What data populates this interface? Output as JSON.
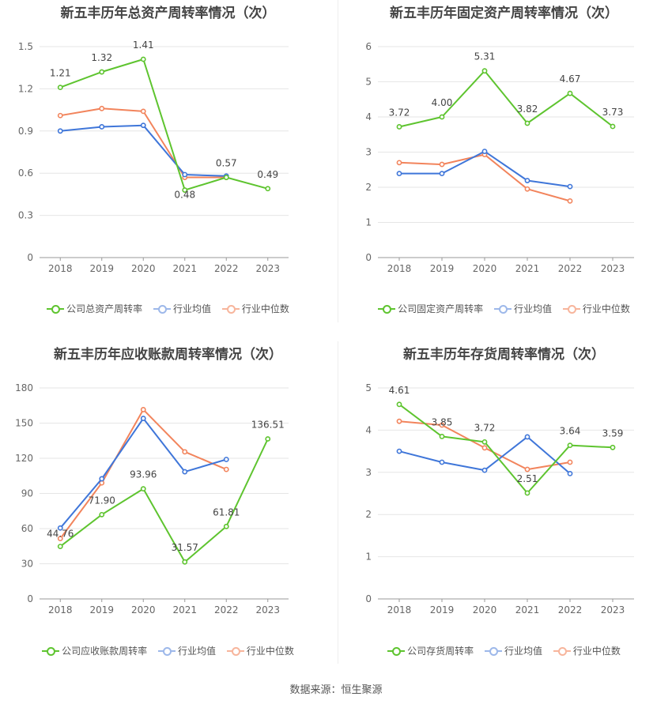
{
  "source": "数据来源：恒生聚源",
  "colors": {
    "company": "#5ec42f",
    "avg": "#3f76d9",
    "median": "#f2845c",
    "grid": "#e6e6e6",
    "axis": "#999999"
  },
  "chart_data": [
    {
      "type": "line",
      "title": "新五丰历年总资产周转率情况（次）",
      "categories": [
        "2018",
        "2019",
        "2020",
        "2021",
        "2022",
        "2023"
      ],
      "yticks": [
        "0",
        "0.3",
        "0.6",
        "0.9",
        "1.2",
        "1.5"
      ],
      "ylim": [
        0,
        1.5
      ],
      "series": [
        {
          "name": "公司总资产周转率",
          "role": "company",
          "values": [
            1.21,
            1.32,
            1.41,
            0.48,
            0.57,
            0.49
          ],
          "labels": [
            "1.21",
            "1.32",
            "1.41",
            "0.48",
            "0.57",
            "0.49"
          ]
        },
        {
          "name": "行业均值",
          "role": "avg",
          "values": [
            0.9,
            0.93,
            0.94,
            0.59,
            0.58,
            null
          ]
        },
        {
          "name": "行业中位数",
          "role": "median",
          "values": [
            1.01,
            1.06,
            1.04,
            0.57,
            0.57,
            null
          ]
        }
      ]
    },
    {
      "type": "line",
      "title": "新五丰历年固定资产周转率情况（次）",
      "categories": [
        "2018",
        "2019",
        "2020",
        "2021",
        "2022",
        "2023"
      ],
      "yticks": [
        "0",
        "1",
        "2",
        "3",
        "4",
        "5",
        "6"
      ],
      "ylim": [
        0,
        6
      ],
      "series": [
        {
          "name": "公司固定资产周转率",
          "role": "company",
          "values": [
            3.72,
            4.0,
            5.31,
            3.82,
            4.67,
            3.73
          ],
          "labels": [
            "3.72",
            "4.00",
            "5.31",
            "3.82",
            "4.67",
            "3.73"
          ]
        },
        {
          "name": "行业均值",
          "role": "avg",
          "values": [
            2.39,
            2.39,
            3.02,
            2.19,
            2.02,
            null
          ]
        },
        {
          "name": "行业中位数",
          "role": "median",
          "values": [
            2.7,
            2.65,
            2.93,
            1.95,
            1.61,
            null
          ]
        }
      ]
    },
    {
      "type": "line",
      "title": "新五丰历年应收账款周转率情况（次）",
      "categories": [
        "2018",
        "2019",
        "2020",
        "2021",
        "2022",
        "2023"
      ],
      "yticks": [
        "0",
        "30",
        "60",
        "90",
        "120",
        "150",
        "180"
      ],
      "ylim": [
        0,
        180
      ],
      "series": [
        {
          "name": "公司应收账款周转率",
          "role": "company",
          "values": [
            44.76,
            71.9,
            93.96,
            31.57,
            61.81,
            136.51
          ],
          "labels": [
            "44.76",
            "71.90",
            "93.96",
            "31.57",
            "61.81",
            "136.51"
          ]
        },
        {
          "name": "行业均值",
          "role": "avg",
          "values": [
            60.5,
            102.5,
            154.0,
            108.5,
            119.0,
            null
          ]
        },
        {
          "name": "行业中位数",
          "role": "median",
          "values": [
            51.5,
            99.0,
            161.5,
            125.5,
            110.5,
            null
          ]
        }
      ]
    },
    {
      "type": "line",
      "title": "新五丰历年存货周转率情况（次）",
      "categories": [
        "2018",
        "2019",
        "2020",
        "2021",
        "2022",
        "2023"
      ],
      "yticks": [
        "0",
        "1",
        "2",
        "3",
        "4",
        "5"
      ],
      "ylim": [
        0,
        5
      ],
      "series": [
        {
          "name": "公司存货周转率",
          "role": "company",
          "values": [
            4.61,
            3.85,
            3.72,
            2.51,
            3.64,
            3.59
          ],
          "labels": [
            "4.61",
            "3.85",
            "3.72",
            "2.51",
            "3.64",
            "3.59"
          ]
        },
        {
          "name": "行业均值",
          "role": "avg",
          "values": [
            3.5,
            3.24,
            3.05,
            3.84,
            2.97,
            null
          ]
        },
        {
          "name": "行业中位数",
          "role": "median",
          "values": [
            4.21,
            4.12,
            3.58,
            3.07,
            3.24,
            null
          ]
        }
      ]
    }
  ]
}
